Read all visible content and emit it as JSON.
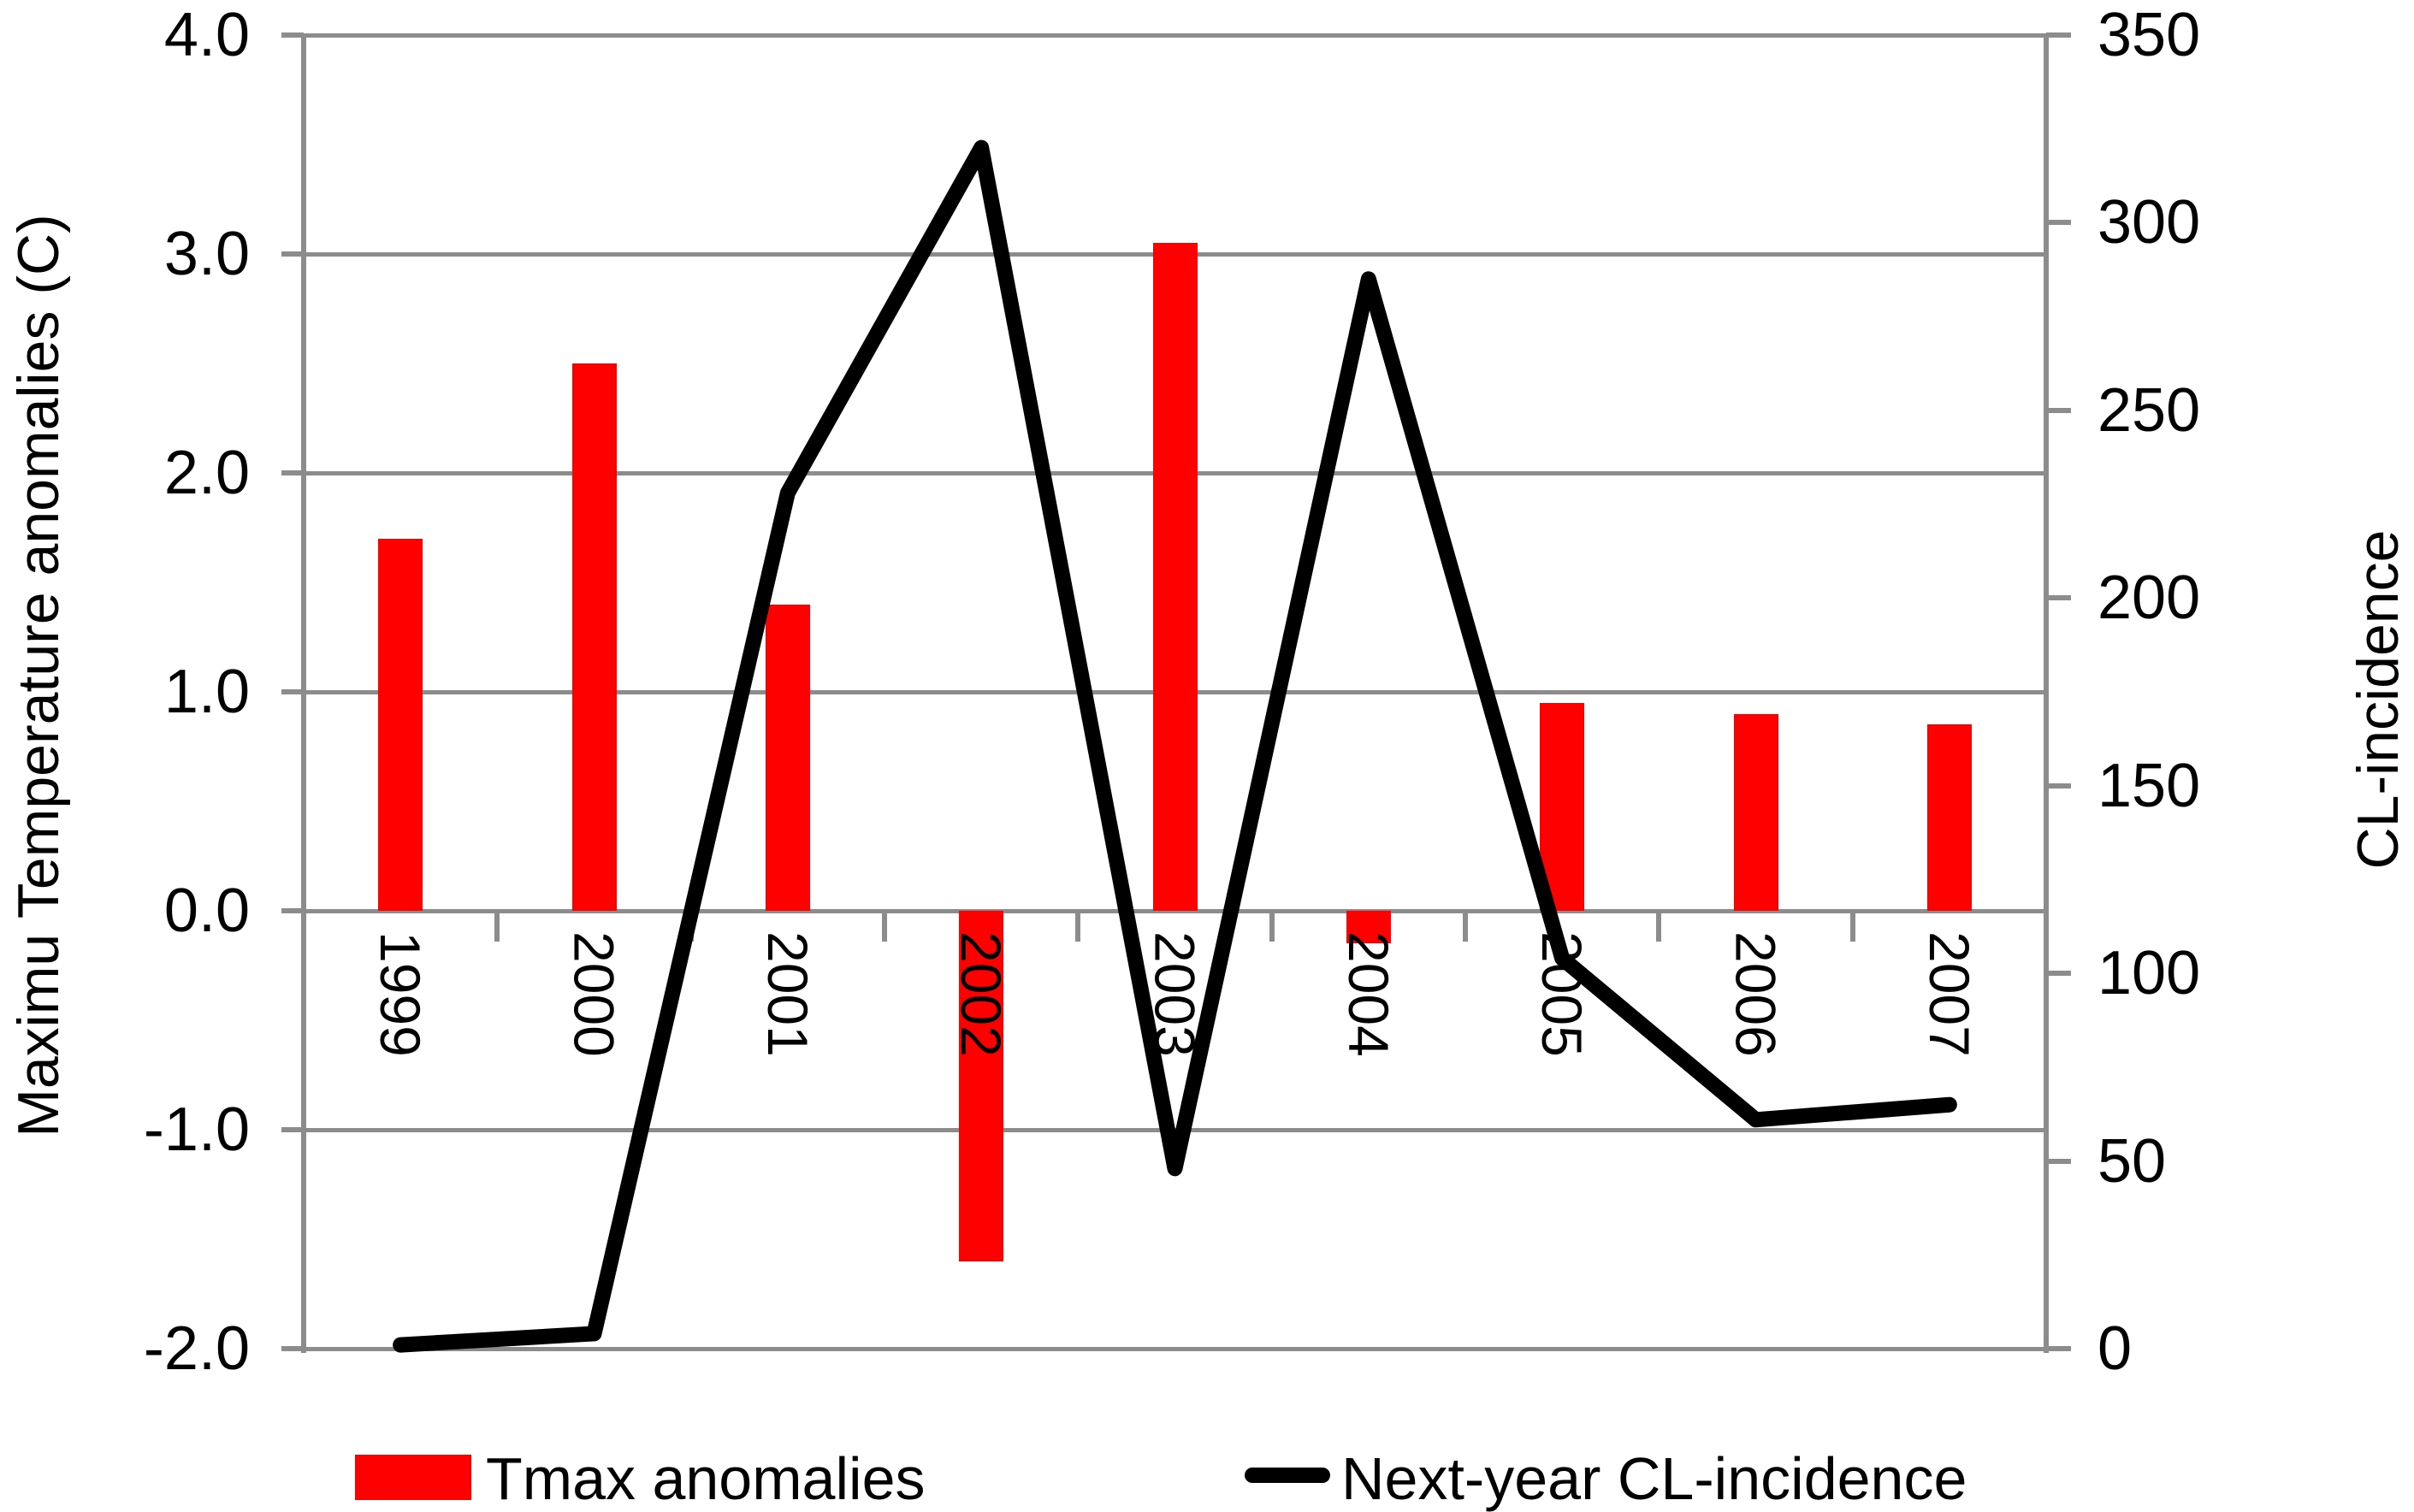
{
  "chart_data": {
    "type": "bar",
    "subtype": "dual-axis bar + line combo",
    "categories": [
      "1999",
      "2000",
      "2001",
      "2002",
      "2003",
      "2004",
      "2005",
      "2006",
      "2007"
    ],
    "series": [
      {
        "name": "Tmax anomalies",
        "type": "bar",
        "axis": "left",
        "color": "#FF0000",
        "values": [
          1.7,
          2.5,
          1.4,
          -1.6,
          3.05,
          -0.15,
          0.95,
          0.9,
          0.85
        ]
      },
      {
        "name": "Next-year CL-incidence",
        "type": "line",
        "axis": "right",
        "color": "#000000",
        "values": [
          1,
          4,
          228,
          320,
          48,
          285,
          104,
          61,
          65
        ]
      }
    ],
    "left_axis": {
      "label": "Maximu Temperature anomalies (C)",
      "min": -2.0,
      "max": 4.0,
      "tick_step": 1.0,
      "tick_labels": [
        "4.0",
        "3.0",
        "2.0",
        "1.0",
        "0.0",
        "-1.0",
        "-2.0"
      ]
    },
    "right_axis": {
      "label": "CL-incidence",
      "min": 0,
      "max": 350,
      "tick_step": 50,
      "tick_labels": [
        "350",
        "300",
        "250",
        "200",
        "150",
        "100",
        "50",
        "0"
      ]
    },
    "grid": true,
    "grid_color": "#8C8C8C",
    "legend_position": "bottom"
  },
  "legend": {
    "items": [
      {
        "label": "Tmax anomalies",
        "swatch": "rect",
        "color": "#FF0000"
      },
      {
        "label": "Next-year CL-incidence",
        "swatch": "line",
        "color": "#000000"
      }
    ]
  }
}
